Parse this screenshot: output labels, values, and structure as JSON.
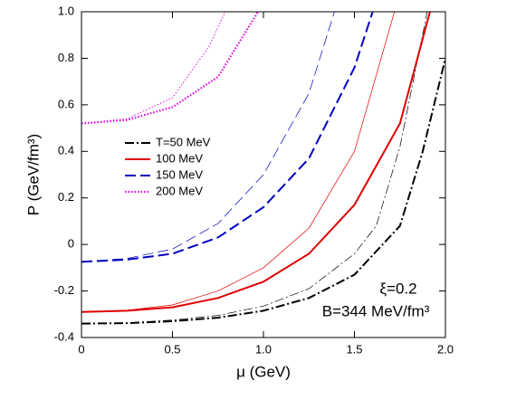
{
  "chart_data": {
    "type": "line",
    "xlabel": "μ (GeV)",
    "ylabel": "P (GeV/fm³)",
    "xlim": [
      0,
      2.0
    ],
    "ylim": [
      -0.4,
      1.0
    ],
    "xticks": [
      0,
      0.5,
      {
        "value": 1,
        "label": "1.0"
      },
      1.5,
      {
        "value": 2,
        "label": "2.0"
      }
    ],
    "yticks": [
      -0.4,
      -0.2,
      0,
      0.2,
      0.4,
      0.6,
      0.8,
      {
        "value": 1,
        "label": "1.0"
      }
    ],
    "legend": "center left",
    "annotations": [
      "ξ=0.2",
      "B=344 MeV/fm³"
    ],
    "series": [
      {
        "name": "T=50 MeV",
        "color": "#000000",
        "style": "dashdot",
        "width": 2,
        "x": [
          0,
          0.25,
          0.5,
          0.75,
          1.0,
          1.25,
          1.5,
          1.75,
          1.875,
          2.0
        ],
        "values": [
          -0.34,
          -0.338,
          -0.33,
          -0.315,
          -0.285,
          -0.23,
          -0.13,
          0.08,
          0.4,
          0.8
        ]
      },
      {
        "color": "#000000",
        "style": "dashdot",
        "width": 0.7,
        "x": [
          0,
          0.25,
          0.5,
          0.75,
          1.0,
          1.25,
          1.5,
          1.62,
          1.75,
          1.9
        ],
        "values": [
          -0.34,
          -0.337,
          -0.325,
          -0.305,
          -0.265,
          -0.19,
          -0.04,
          0.08,
          0.42,
          1.0
        ]
      },
      {
        "name": "100 MeV",
        "color": "#e00000",
        "style": "solid",
        "width": 2,
        "x": [
          0,
          0.25,
          0.5,
          0.75,
          1.0,
          1.25,
          1.5,
          1.75,
          1.915
        ],
        "values": [
          -0.29,
          -0.285,
          -0.27,
          -0.23,
          -0.16,
          -0.04,
          0.17,
          0.52,
          1.0
        ]
      },
      {
        "color": "#e00000",
        "style": "solid",
        "width": 0.7,
        "x": [
          0,
          0.25,
          0.5,
          0.75,
          1.0,
          1.25,
          1.5,
          1.72
        ],
        "values": [
          -0.29,
          -0.283,
          -0.26,
          -0.2,
          -0.1,
          0.07,
          0.4,
          1.0
        ]
      },
      {
        "name": "150 MeV",
        "color": "#0000c0",
        "style": "dashed",
        "width": 2,
        "x": [
          0,
          0.25,
          0.5,
          0.75,
          1.0,
          1.25,
          1.5,
          1.6
        ],
        "values": [
          -0.075,
          -0.065,
          -0.04,
          0.03,
          0.16,
          0.37,
          0.76,
          1.0
        ]
      },
      {
        "color": "#0000c0",
        "style": "dashed",
        "width": 0.7,
        "x": [
          0,
          0.25,
          0.5,
          0.75,
          1.0,
          1.25,
          1.39
        ],
        "values": [
          -0.075,
          -0.06,
          -0.02,
          0.09,
          0.3,
          0.65,
          1.0
        ]
      },
      {
        "name": "200 MeV",
        "color": "#e000e0",
        "style": "dotted",
        "width": 2.2,
        "x": [
          0,
          0.25,
          0.5,
          0.75,
          0.97
        ],
        "values": [
          0.52,
          0.535,
          0.59,
          0.72,
          1.0
        ]
      },
      {
        "color": "#e000e0",
        "style": "dotted",
        "width": 0.9,
        "x": [
          0,
          0.25,
          0.5,
          0.7,
          0.79
        ],
        "values": [
          0.52,
          0.54,
          0.63,
          0.85,
          1.0
        ]
      }
    ]
  }
}
